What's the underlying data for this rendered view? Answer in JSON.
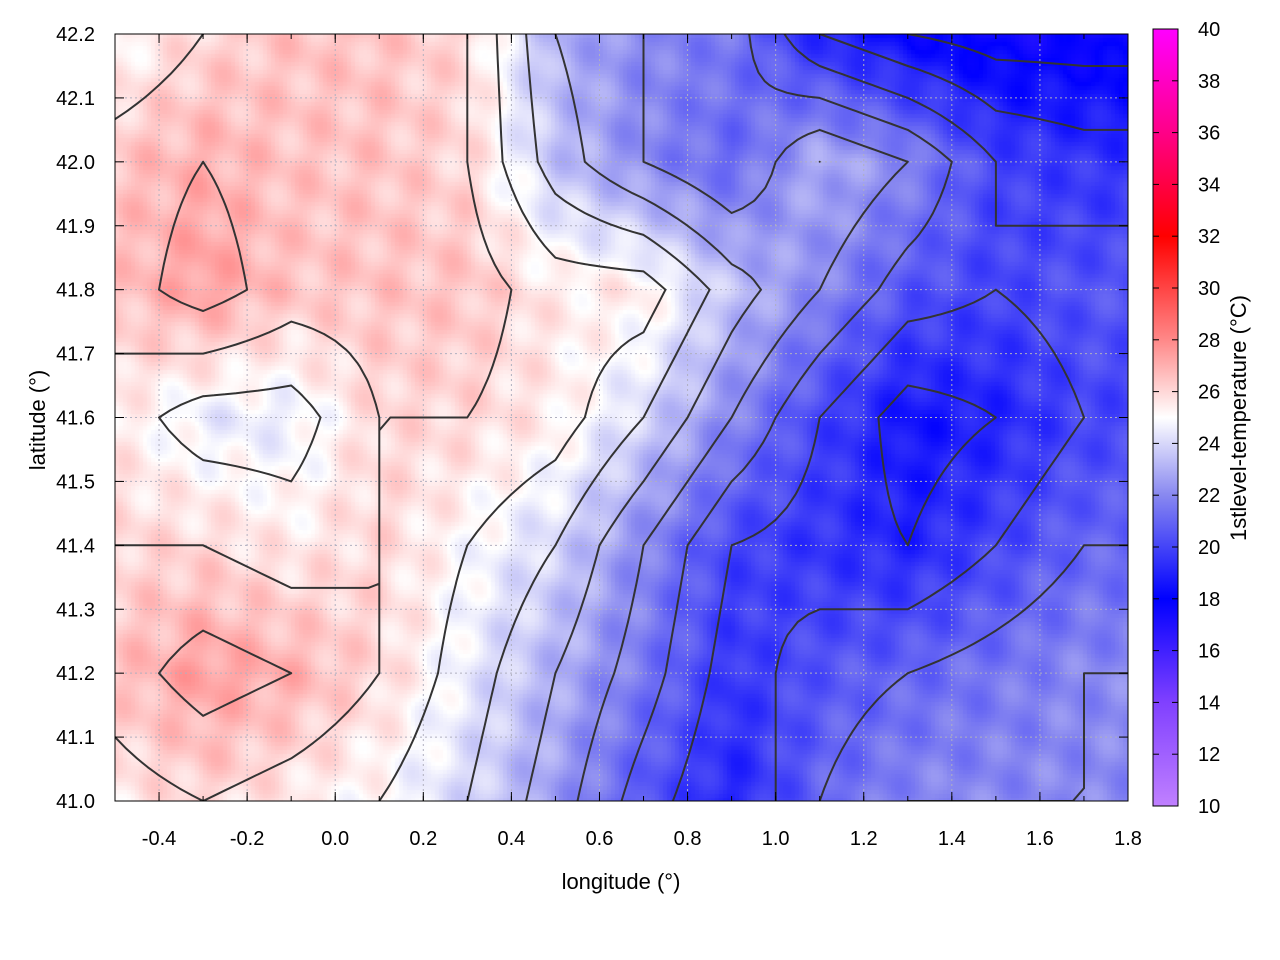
{
  "chart_data": {
    "type": "heatmap",
    "title": "",
    "xlabel": "longitude (°)",
    "ylabel": "latitude (°)",
    "cblabel": "1stlevel-temperature (°C)",
    "xlim": [
      -0.5,
      1.8
    ],
    "ylim": [
      41.0,
      42.2
    ],
    "cblim": [
      10,
      40
    ],
    "x_ticks": [
      "-0.4",
      "-0.2",
      "0.0",
      "0.2",
      "0.4",
      "0.6",
      "0.8",
      "1.0",
      "1.2",
      "1.4",
      "1.6",
      "1.8"
    ],
    "x_tick_values": [
      -0.4,
      -0.2,
      0.0,
      0.2,
      0.4,
      0.6,
      0.8,
      1.0,
      1.2,
      1.4,
      1.6,
      1.8
    ],
    "y_ticks": [
      "41.0",
      "41.1",
      "41.2",
      "41.3",
      "41.4",
      "41.5",
      "41.6",
      "41.7",
      "41.8",
      "41.9",
      "42.0",
      "42.1",
      "42.2"
    ],
    "y_tick_values": [
      41.0,
      41.1,
      41.2,
      41.3,
      41.4,
      41.5,
      41.6,
      41.7,
      41.8,
      41.9,
      42.0,
      42.1,
      42.2
    ],
    "cb_ticks": [
      "10",
      "12",
      "14",
      "16",
      "18",
      "20",
      "22",
      "24",
      "26",
      "28",
      "30",
      "32",
      "34",
      "36",
      "38",
      "40"
    ],
    "cb_tick_values": [
      10,
      12,
      14,
      16,
      18,
      20,
      22,
      24,
      26,
      28,
      30,
      32,
      34,
      36,
      38,
      40
    ],
    "grid": true,
    "colormap": [
      {
        "v": 10,
        "color": "#c080ff"
      },
      {
        "v": 14,
        "color": "#8040ff"
      },
      {
        "v": 18,
        "color": "#0000ff"
      },
      {
        "v": 22,
        "color": "#8888f0"
      },
      {
        "v": 25,
        "color": "#ffffff"
      },
      {
        "v": 28,
        "color": "#ff8888"
      },
      {
        "v": 32,
        "color": "#ff0000"
      },
      {
        "v": 36,
        "color": "#ff0088"
      },
      {
        "v": 40,
        "color": "#ff00ff"
      }
    ],
    "temperature_field_approx": {
      "lon": [
        -0.5,
        -0.3,
        -0.1,
        0.1,
        0.3,
        0.5,
        0.7,
        0.9,
        1.1,
        1.3,
        1.5,
        1.7
      ],
      "lat": [
        41.0,
        41.2,
        41.4,
        41.6,
        41.8,
        42.0,
        42.2
      ],
      "values": [
        [
          25.5,
          26.0,
          25.5,
          25.0,
          24.0,
          22.5,
          20.5,
          19.0,
          21.0,
          22.0,
          22.0,
          22.0
        ],
        [
          26.5,
          27.5,
          27.0,
          26.0,
          24.5,
          23.0,
          21.5,
          19.5,
          20.5,
          21.0,
          21.5,
          22.0
        ],
        [
          26.0,
          26.0,
          25.5,
          26.0,
          25.0,
          24.0,
          22.0,
          20.0,
          19.5,
          19.0,
          20.0,
          21.0
        ],
        [
          25.5,
          24.5,
          24.5,
          26.0,
          26.0,
          25.5,
          24.0,
          22.0,
          20.0,
          18.5,
          19.0,
          20.0
        ],
        [
          26.5,
          27.5,
          26.5,
          26.5,
          26.5,
          25.5,
          25.5,
          23.5,
          22.0,
          20.5,
          20.0,
          20.5
        ],
        [
          26.5,
          27.0,
          26.5,
          26.5,
          26.0,
          23.5,
          22.0,
          21.0,
          23.0,
          22.0,
          20.0,
          19.5
        ],
        [
          25.0,
          26.0,
          26.5,
          26.5,
          26.0,
          23.0,
          22.0,
          21.5,
          19.0,
          18.0,
          17.5,
          17.5
        ]
      ]
    }
  }
}
